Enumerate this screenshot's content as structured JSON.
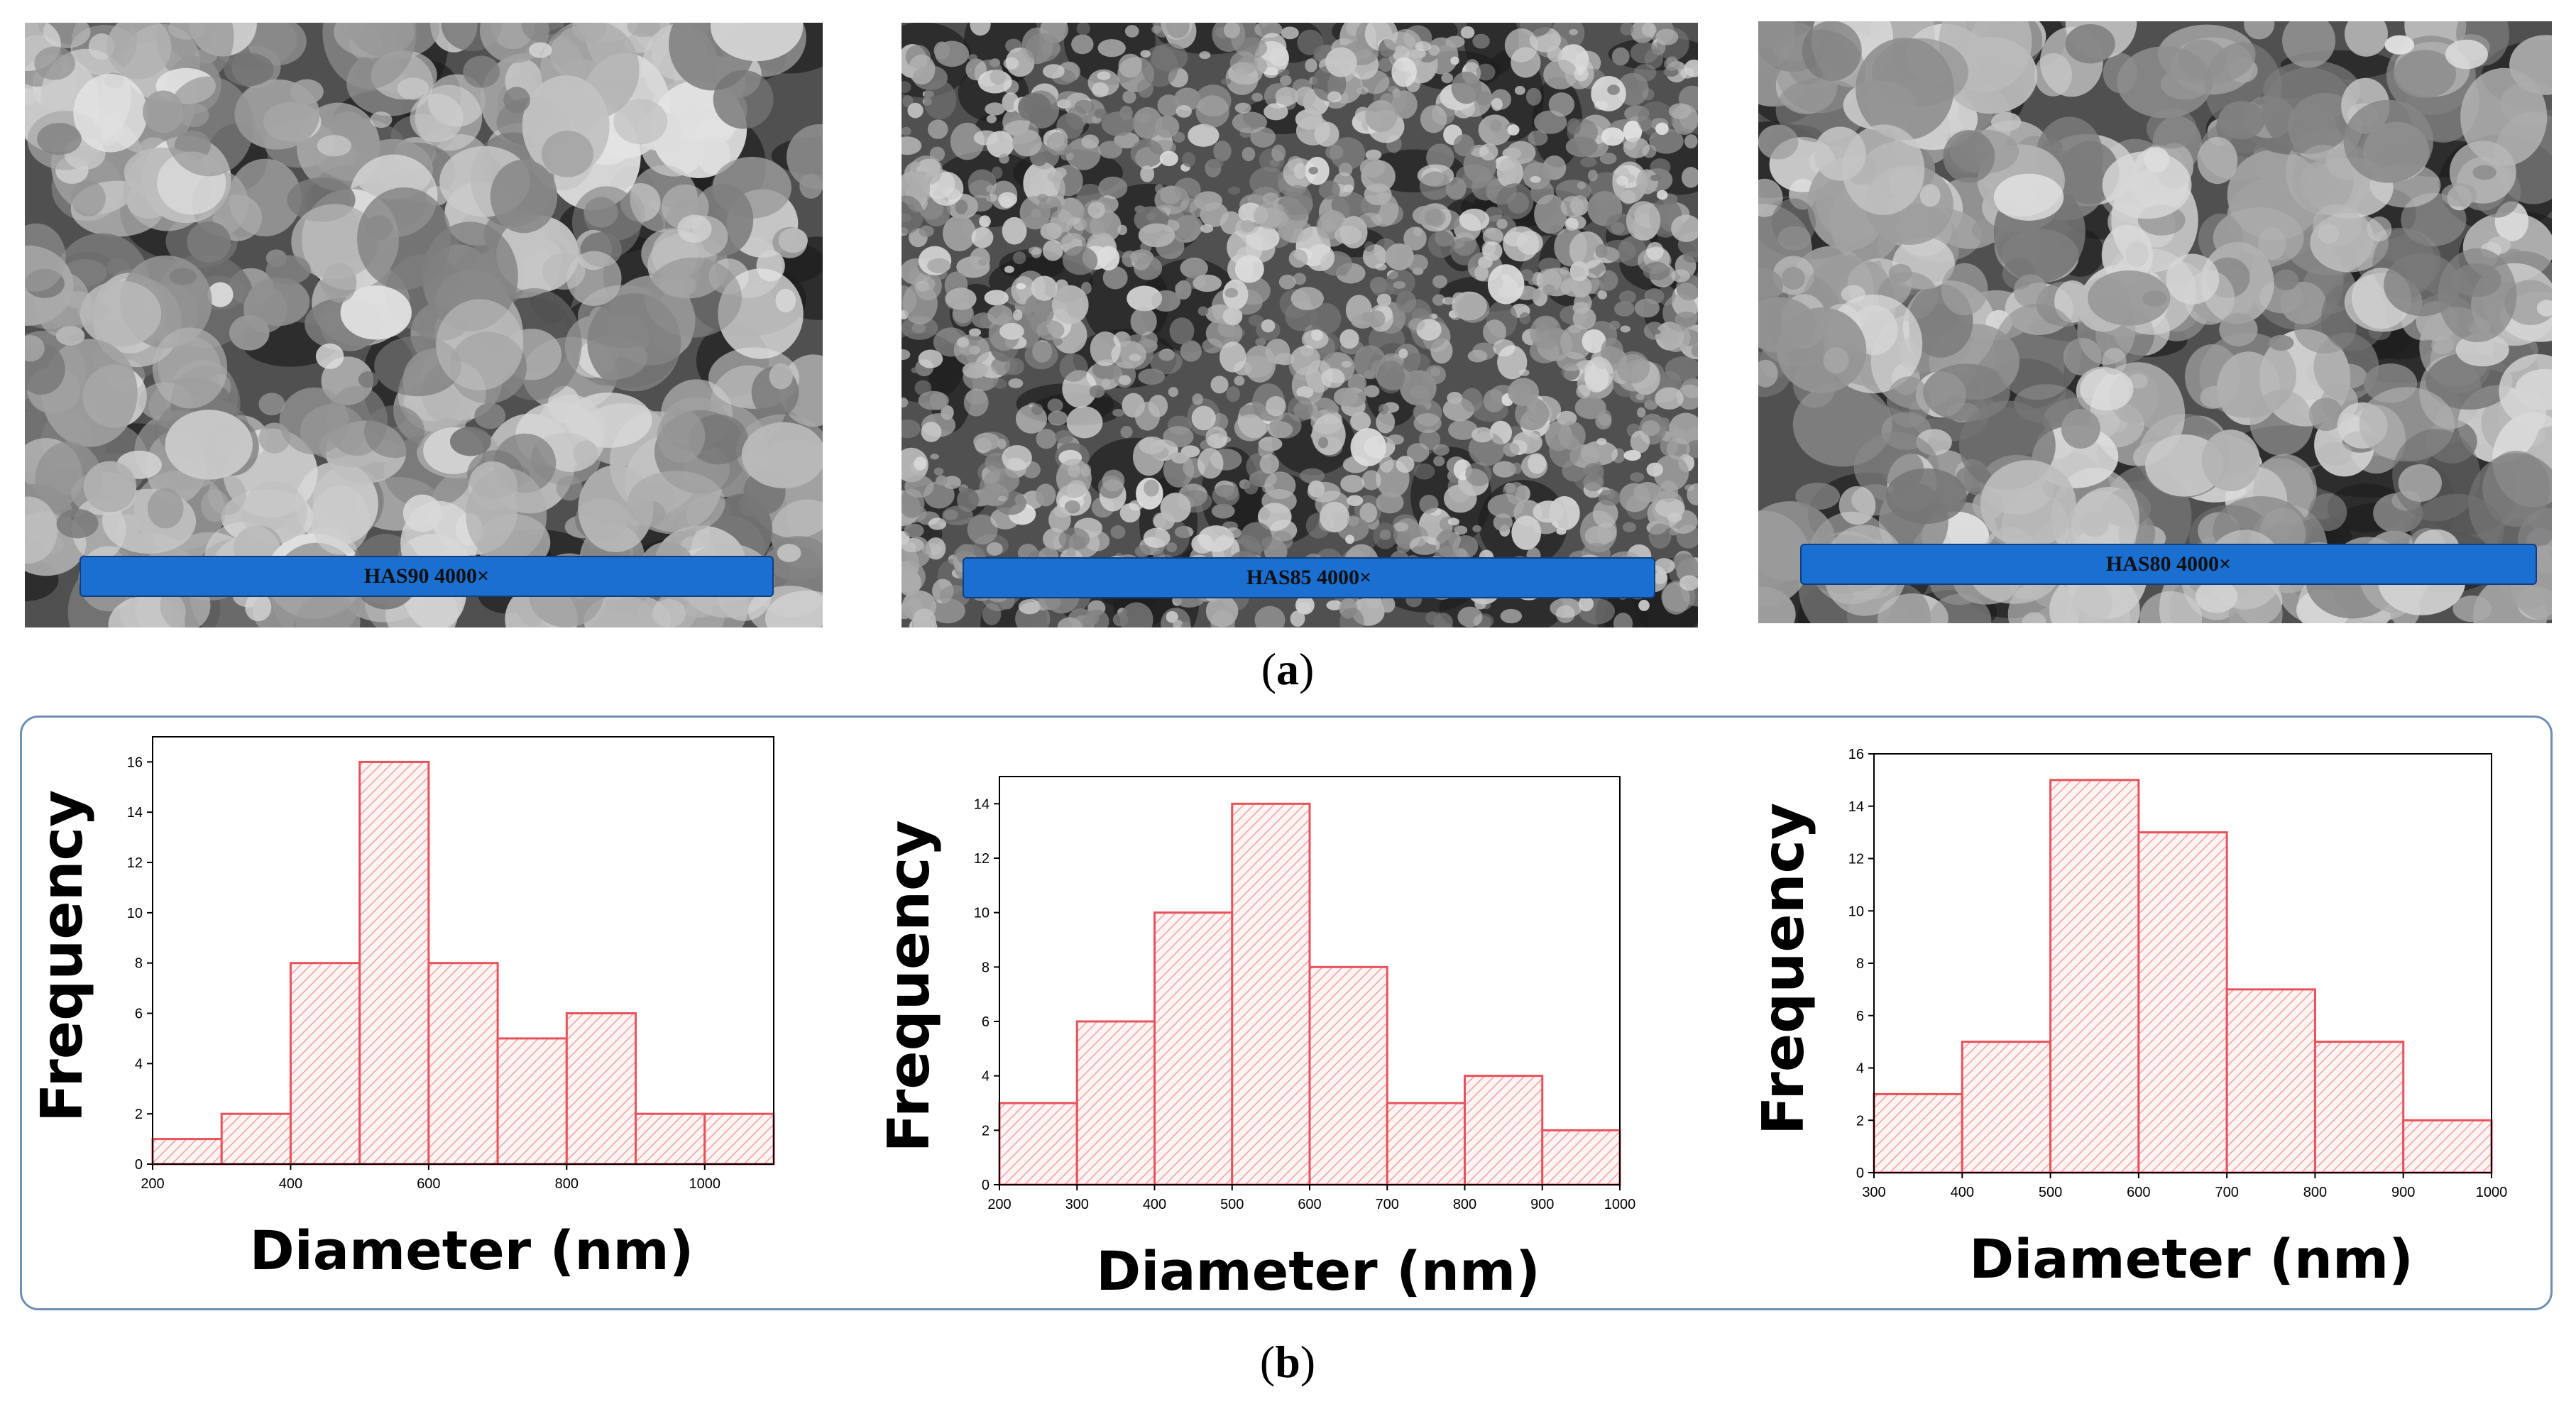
{
  "sem_images": [
    {
      "label": "HAS90 4000×",
      "texture": "coarse"
    },
    {
      "label": "HAS85 4000×",
      "texture": "fine"
    },
    {
      "label": "HAS80 4000×",
      "texture": "coarse"
    }
  ],
  "captions": {
    "a": "a",
    "b": "b"
  },
  "colors": {
    "bar_stroke": "#e8525a",
    "bar_hatch": "#f2a0a5",
    "frame": "#6d8fb5",
    "label_bg": "#1b6fd1"
  },
  "chart_data": [
    {
      "type": "bar",
      "bin_edges": [
        200,
        300,
        400,
        500,
        600,
        700,
        800,
        900,
        1000,
        1100
      ],
      "values": [
        1,
        2,
        8,
        16,
        8,
        5,
        6,
        2,
        2
      ],
      "xlim": [
        200,
        1100
      ],
      "ylim": [
        0,
        17
      ],
      "xticks": [
        "200",
        "400",
        "600",
        "800",
        "1000"
      ],
      "yticks": [
        "0",
        "2",
        "4",
        "6",
        "8",
        "10",
        "12",
        "14",
        "16"
      ],
      "xlabel": "Diameter (nm)",
      "ylabel": "Frequency"
    },
    {
      "type": "bar",
      "bin_edges": [
        200,
        300,
        400,
        500,
        600,
        700,
        800,
        900,
        1000
      ],
      "values": [
        3,
        6,
        10,
        14,
        8,
        3,
        4,
        2
      ],
      "xlim": [
        200,
        1000
      ],
      "ylim": [
        0,
        15
      ],
      "xticks": [
        "200",
        "300",
        "400",
        "500",
        "600",
        "700",
        "800",
        "900",
        "1000"
      ],
      "yticks": [
        "0",
        "2",
        "4",
        "6",
        "8",
        "10",
        "12",
        "14"
      ],
      "xlabel": "Diameter (nm)",
      "ylabel": "Frequency"
    },
    {
      "type": "bar",
      "bin_edges": [
        300,
        400,
        500,
        600,
        700,
        800,
        900,
        1000
      ],
      "values": [
        3,
        5,
        15,
        13,
        7,
        5,
        2
      ],
      "xlim": [
        300,
        1000
      ],
      "ylim": [
        0,
        16
      ],
      "xticks": [
        "300",
        "400",
        "500",
        "600",
        "700",
        "800",
        "900",
        "1000"
      ],
      "yticks": [
        "0",
        "2",
        "4",
        "6",
        "8",
        "10",
        "12",
        "14",
        "16"
      ],
      "xlabel": "Diameter (nm)",
      "ylabel": "Frequency"
    }
  ]
}
